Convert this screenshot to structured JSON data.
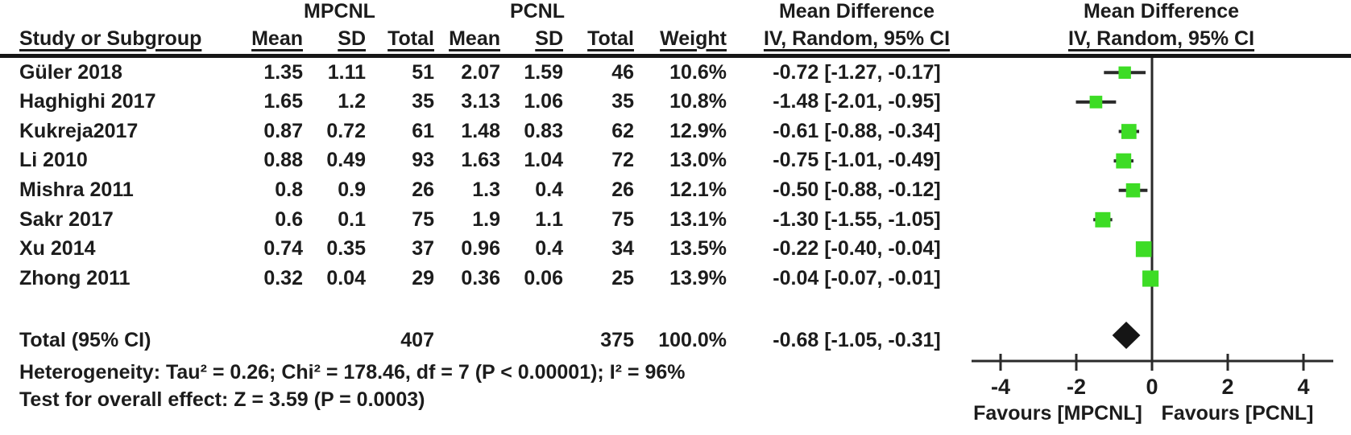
{
  "table_header": {
    "study_col": "Study or Subgroup",
    "group1": "MPCNL",
    "group2": "PCNL",
    "mean": "Mean",
    "sd": "SD",
    "total": "Total",
    "weight": "Weight",
    "effect": "Mean Difference",
    "method": "IV, Random, 95% CI"
  },
  "chart_data": {
    "type": "forest",
    "effect_measure": "Mean Difference",
    "model": "IV, Random, 95% CI",
    "studies": [
      {
        "name": "Güler 2018",
        "mpcnl_mean": "1.35",
        "mpcnl_sd": "1.11",
        "mpcnl_total": "51",
        "pcnl_mean": "2.07",
        "pcnl_sd": "1.59",
        "pcnl_total": "46",
        "weight": "10.6%",
        "weight_pct": 10.6,
        "md_text": "-0.72 [-1.27, -0.17]",
        "estimate": -0.72,
        "ci_low": -1.27,
        "ci_high": -0.17
      },
      {
        "name": "Haghighi 2017",
        "mpcnl_mean": "1.65",
        "mpcnl_sd": "1.2",
        "mpcnl_total": "35",
        "pcnl_mean": "3.13",
        "pcnl_sd": "1.06",
        "pcnl_total": "35",
        "weight": "10.8%",
        "weight_pct": 10.8,
        "md_text": "-1.48 [-2.01, -0.95]",
        "estimate": -1.48,
        "ci_low": -2.01,
        "ci_high": -0.95
      },
      {
        "name": "Kukreja2017",
        "mpcnl_mean": "0.87",
        "mpcnl_sd": "0.72",
        "mpcnl_total": "61",
        "pcnl_mean": "1.48",
        "pcnl_sd": "0.83",
        "pcnl_total": "62",
        "weight": "12.9%",
        "weight_pct": 12.9,
        "md_text": "-0.61 [-0.88, -0.34]",
        "estimate": -0.61,
        "ci_low": -0.88,
        "ci_high": -0.34
      },
      {
        "name": "Li 2010",
        "mpcnl_mean": "0.88",
        "mpcnl_sd": "0.49",
        "mpcnl_total": "93",
        "pcnl_mean": "1.63",
        "pcnl_sd": "1.04",
        "pcnl_total": "72",
        "weight": "13.0%",
        "weight_pct": 13.0,
        "md_text": "-0.75 [-1.01, -0.49]",
        "estimate": -0.75,
        "ci_low": -1.01,
        "ci_high": -0.49
      },
      {
        "name": "Mishra 2011",
        "mpcnl_mean": "0.8",
        "mpcnl_sd": "0.9",
        "mpcnl_total": "26",
        "pcnl_mean": "1.3",
        "pcnl_sd": "0.4",
        "pcnl_total": "26",
        "weight": "12.1%",
        "weight_pct": 12.1,
        "md_text": "-0.50 [-0.88, -0.12]",
        "estimate": -0.5,
        "ci_low": -0.88,
        "ci_high": -0.12
      },
      {
        "name": "Sakr 2017",
        "mpcnl_mean": "0.6",
        "mpcnl_sd": "0.1",
        "mpcnl_total": "75",
        "pcnl_mean": "1.9",
        "pcnl_sd": "1.1",
        "pcnl_total": "75",
        "weight": "13.1%",
        "weight_pct": 13.1,
        "md_text": "-1.30 [-1.55, -1.05]",
        "estimate": -1.3,
        "ci_low": -1.55,
        "ci_high": -1.05
      },
      {
        "name": "Xu 2014",
        "mpcnl_mean": "0.74",
        "mpcnl_sd": "0.35",
        "mpcnl_total": "37",
        "pcnl_mean": "0.96",
        "pcnl_sd": "0.4",
        "pcnl_total": "34",
        "weight": "13.5%",
        "weight_pct": 13.5,
        "md_text": "-0.22 [-0.40, -0.04]",
        "estimate": -0.22,
        "ci_low": -0.4,
        "ci_high": -0.04
      },
      {
        "name": "Zhong 2011",
        "mpcnl_mean": "0.32",
        "mpcnl_sd": "0.04",
        "mpcnl_total": "29",
        "pcnl_mean": "0.36",
        "pcnl_sd": "0.06",
        "pcnl_total": "25",
        "weight": "13.9%",
        "weight_pct": 13.9,
        "md_text": "-0.04 [-0.07, -0.01]",
        "estimate": -0.04,
        "ci_low": -0.07,
        "ci_high": -0.01
      }
    ],
    "totals": {
      "label": "Total (95% CI)",
      "mpcnl_total": "407",
      "pcnl_total": "375",
      "weight": "100.0%",
      "md_text": "-0.68 [-1.05, -0.31]",
      "estimate": -0.68,
      "ci_low": -1.05,
      "ci_high": -0.31
    },
    "heterogeneity": "Heterogeneity: Tau² = 0.26; Chi² = 178.46, df = 7 (P < 0.00001); I² = 96%",
    "overall_effect": "Test for overall effect: Z = 3.59 (P = 0.0003)",
    "axis": {
      "tick_labels": [
        "-4",
        "-2",
        "0",
        "2",
        "4"
      ],
      "tick_values": [
        -4,
        -2,
        0,
        2,
        4
      ],
      "xlim": [
        -4.8,
        4.8
      ],
      "grid": false
    },
    "favours_left": "Favours [MPCNL]",
    "favours_right": "Favours [PCNL]",
    "marker_color": "#3ddc25",
    "line_color": "#2a2a2a"
  }
}
